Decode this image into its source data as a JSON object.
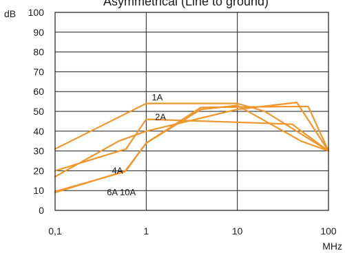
{
  "chart_data": {
    "type": "line",
    "title": "Asymmetrical (Line to ground)",
    "xscale": "log",
    "xlim": [
      0.1,
      100
    ],
    "ylim": [
      0,
      100
    ],
    "ylabel": "dB",
    "xlabel": "MHz",
    "x_tick_values": [
      0.1,
      1,
      10,
      100
    ],
    "x_tick_labels": [
      "0,1",
      "1",
      "10",
      "100"
    ],
    "y_tick_labels": [
      "100",
      "90",
      "80",
      "70",
      "60",
      "50",
      "40",
      "30",
      "20",
      "10",
      "0"
    ],
    "grid": true,
    "line_color": "#f0962a",
    "series": [
      {
        "name": "1A",
        "label_at": [
          1.15,
          57
        ],
        "points": [
          [
            0.1,
            31
          ],
          [
            1,
            54
          ],
          [
            10,
            54
          ],
          [
            20,
            50
          ],
          [
            100,
            30
          ]
        ]
      },
      {
        "name": "2A",
        "label_at": [
          1.25,
          47
        ],
        "points": [
          [
            0.1,
            20
          ],
          [
            0.6,
            31
          ],
          [
            1,
            46
          ],
          [
            10,
            44.5
          ],
          [
            40,
            43.5
          ],
          [
            100,
            30
          ]
        ]
      },
      {
        "name": "4A",
        "label_at": [
          0.42,
          20
        ],
        "points": [
          [
            0.1,
            17
          ],
          [
            0.5,
            35
          ],
          [
            1,
            40
          ],
          [
            10,
            51
          ],
          [
            45,
            54.5
          ],
          [
            100,
            30
          ]
        ]
      },
      {
        "name": "6A 10A",
        "label_at": [
          0.37,
          9
        ],
        "points": [
          [
            0.1,
            9
          ],
          [
            0.6,
            20
          ],
          [
            1,
            34
          ],
          [
            4,
            52
          ],
          [
            60,
            52.5
          ],
          [
            100,
            30
          ]
        ]
      },
      {
        "name": "",
        "points": [
          [
            0.1,
            9.5
          ],
          [
            0.58,
            19.5
          ],
          [
            1,
            34
          ],
          [
            4,
            51
          ],
          [
            10,
            53
          ],
          [
            50,
            35
          ],
          [
            100,
            30
          ]
        ]
      }
    ]
  }
}
